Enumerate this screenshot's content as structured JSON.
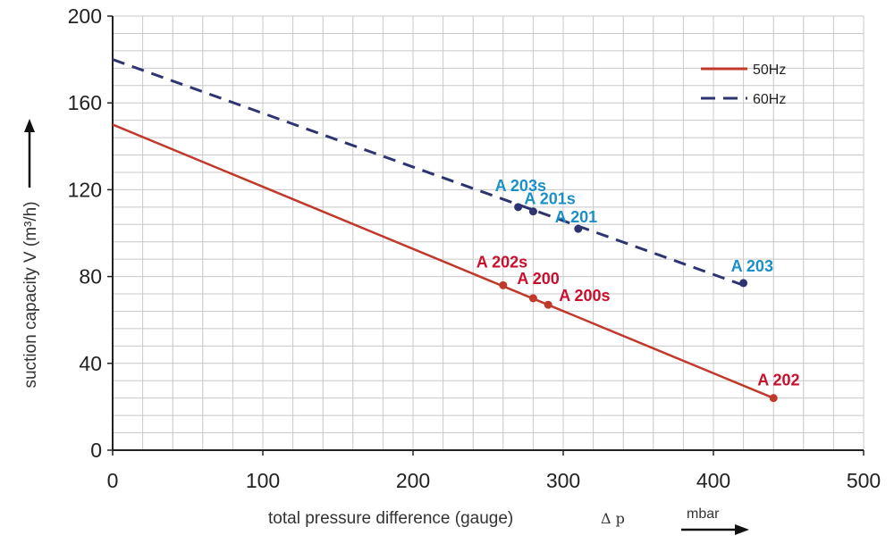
{
  "chart_data": {
    "type": "line",
    "title": "",
    "xlabel": "total pressure difference (gauge)",
    "xlabel_symbol": "Δ p",
    "xunit": "mbar",
    "ylabel": "suction capacity V (m³/h)",
    "xlim": [
      0,
      500
    ],
    "ylim": [
      0,
      200
    ],
    "x_ticks": [
      0,
      100,
      200,
      300,
      400,
      500
    ],
    "x_tick_labels": [
      "0",
      "100",
      "200",
      "300",
      "400",
      "500"
    ],
    "y_ticks": [
      0,
      40,
      80,
      120,
      160,
      200
    ],
    "y_tick_labels": [
      "0",
      "40",
      "80",
      "120",
      "160",
      "200"
    ],
    "grid": true,
    "legend_position": "top-right",
    "series": [
      {
        "name": "50Hz",
        "style": "solid",
        "color": "#c0392b",
        "label_color": "#c8102e",
        "x": [
          0,
          440
        ],
        "y": [
          150,
          24
        ],
        "points": [
          {
            "label": "A 202s",
            "x": 260,
            "y": 76
          },
          {
            "label": "A 200",
            "x": 280,
            "y": 70
          },
          {
            "label": "A 200s",
            "x": 290,
            "y": 67
          },
          {
            "label": "A 202",
            "x": 440,
            "y": 24
          }
        ]
      },
      {
        "name": "60Hz",
        "style": "dashed",
        "color": "#2e3470",
        "label_color": "#1a8fc8",
        "x": [
          0,
          420
        ],
        "y": [
          180,
          76
        ],
        "points": [
          {
            "label": "A 203s",
            "x": 270,
            "y": 112
          },
          {
            "label": "A 201s",
            "x": 280,
            "y": 110
          },
          {
            "label": "A 201",
            "x": 310,
            "y": 102
          },
          {
            "label": "A 203",
            "x": 420,
            "y": 77
          }
        ]
      }
    ]
  }
}
